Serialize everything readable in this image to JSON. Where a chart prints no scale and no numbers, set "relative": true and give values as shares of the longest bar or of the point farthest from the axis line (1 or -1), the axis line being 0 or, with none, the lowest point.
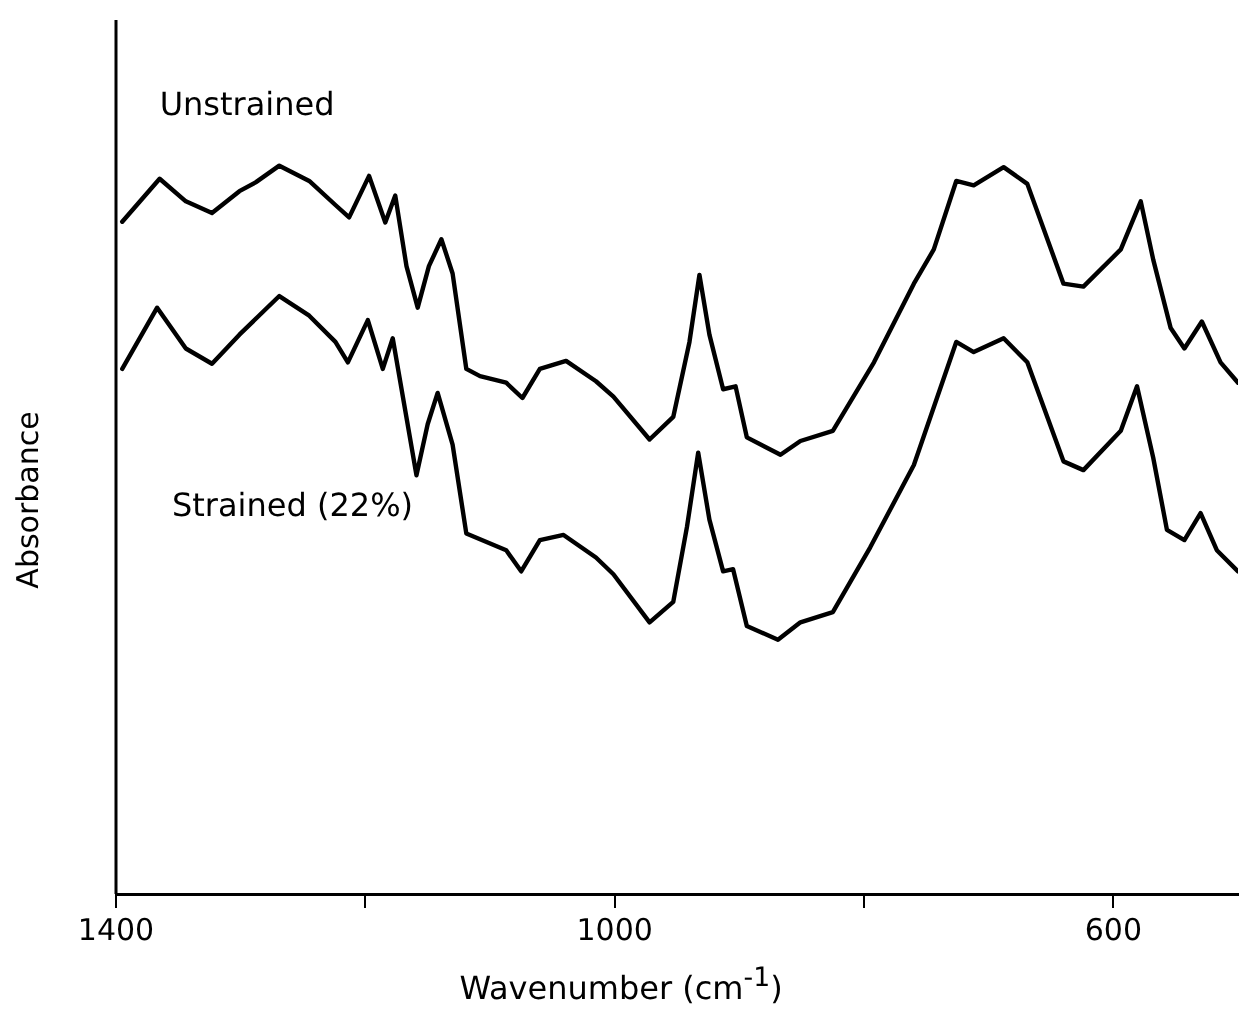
{
  "chart_data": {
    "type": "line",
    "relative": true,
    "xlabel": "Wavenumber (cm$^{-1}$)",
    "ylabel": "Absorbance",
    "xlim": [
      1400,
      500
    ],
    "xticks": [
      1400,
      {
        "value": 1200,
        "label": null
      },
      1000,
      {
        "value": 800,
        "label": null
      },
      600
    ],
    "x": [
      1395,
      1365,
      1344,
      1323,
      1301,
      1288,
      1269,
      1245,
      1224,
      1213,
      1197,
      1184,
      1176,
      1167,
      1158,
      1149,
      1139,
      1130,
      1119,
      1108,
      1087,
      1074,
      1060,
      1039,
      1015,
      1001,
      972,
      953,
      940,
      932,
      924,
      913,
      903,
      894,
      867,
      851,
      825,
      792,
      760,
      744,
      726,
      712,
      688,
      669,
      640,
      624,
      594,
      578,
      568,
      554,
      543,
      529,
      514,
      500
    ],
    "series": [
      {
        "name": "Unstrained",
        "color": "#000000",
        "values": [
          0.923,
          0.982,
          0.951,
          0.935,
          0.965,
          0.977,
          1.0,
          0.979,
          0.946,
          0.929,
          0.986,
          0.922,
          0.959,
          0.862,
          0.805,
          0.862,
          0.899,
          0.852,
          0.721,
          0.711,
          0.702,
          0.681,
          0.721,
          0.732,
          0.704,
          0.683,
          0.624,
          0.655,
          0.758,
          0.85,
          0.768,
          0.693,
          0.697,
          0.627,
          0.603,
          0.622,
          0.636,
          0.73,
          0.838,
          0.885,
          0.979,
          0.973,
          0.998,
          0.975,
          0.838,
          0.834,
          0.885,
          0.951,
          0.871,
          0.777,
          0.749,
          0.786,
          0.73,
          0.702
        ]
      },
      {
        "name": "Strained (22%)",
        "color": "#000000",
        "x": [
          1395,
          1367,
          1344,
          1323,
          1301,
          1269,
          1245,
          1224,
          1214,
          1198,
          1186,
          1178,
          1168,
          1159,
          1150,
          1142,
          1130,
          1119,
          1087,
          1075,
          1060,
          1041,
          1015,
          1001,
          972,
          953,
          942,
          933,
          924,
          913,
          905,
          894,
          869,
          851,
          825,
          795,
          760,
          726,
          712,
          688,
          669,
          640,
          624,
          594,
          581,
          568,
          557,
          543,
          530,
          517,
          500
        ],
        "values": [
          0.721,
          0.805,
          0.749,
          0.728,
          0.768,
          0.821,
          0.794,
          0.758,
          0.73,
          0.788,
          0.721,
          0.763,
          0.664,
          0.575,
          0.645,
          0.688,
          0.617,
          0.495,
          0.472,
          0.443,
          0.486,
          0.493,
          0.462,
          0.439,
          0.373,
          0.401,
          0.504,
          0.606,
          0.514,
          0.443,
          0.446,
          0.368,
          0.349,
          0.373,
          0.387,
          0.476,
          0.589,
          0.758,
          0.744,
          0.763,
          0.73,
          0.594,
          0.582,
          0.636,
          0.697,
          0.599,
          0.5,
          0.486,
          0.523,
          0.472,
          0.443
        ]
      }
    ]
  }
}
